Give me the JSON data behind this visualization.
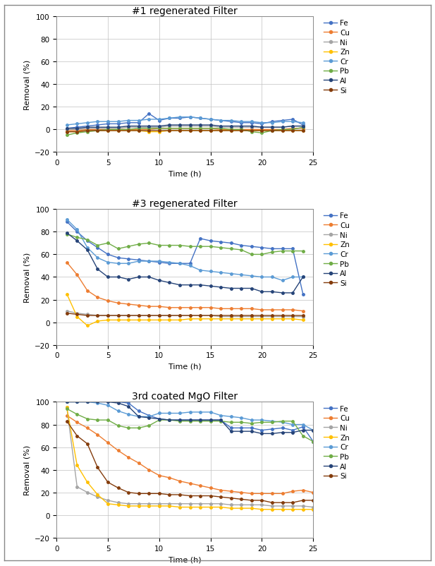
{
  "colors": {
    "Fe": "#4472C4",
    "Cu": "#ED7D31",
    "Ni": "#A5A5A5",
    "Zn": "#FFC000",
    "Cr": "#5B9BD5",
    "Pb": "#70AD47",
    "Al": "#264478",
    "Si": "#843C0C"
  },
  "titles": [
    "#1 regenerated Filter",
    "#3 regenerated Filter",
    "3rd coated MgO Filter"
  ],
  "ylabel": "Removal (%)",
  "xlabel": "Time (h)",
  "ylim": [
    -20,
    100
  ],
  "xlim": [
    0,
    25
  ],
  "yticks": [
    -20,
    0,
    20,
    40,
    60,
    80,
    100
  ],
  "xticks": [
    0,
    5,
    10,
    15,
    20,
    25
  ],
  "plot1": {
    "time": [
      1,
      2,
      3,
      4,
      5,
      6,
      7,
      8,
      9,
      10,
      11,
      12,
      13,
      14,
      15,
      16,
      17,
      18,
      19,
      20,
      21,
      22,
      23,
      24
    ],
    "Fe": [
      1,
      2,
      3,
      4,
      5,
      5,
      6,
      6,
      14,
      8,
      10,
      10,
      11,
      10,
      9,
      8,
      7,
      6,
      6,
      5,
      7,
      8,
      9,
      4
    ],
    "Cu": [
      -1,
      -1,
      0,
      0,
      0,
      0,
      0,
      0,
      0,
      1,
      1,
      1,
      1,
      1,
      1,
      0,
      0,
      0,
      0,
      0,
      0,
      0,
      1,
      1
    ],
    "Ni": [
      0,
      0,
      1,
      1,
      1,
      1,
      2,
      2,
      2,
      2,
      3,
      3,
      3,
      3,
      3,
      2,
      2,
      2,
      2,
      2,
      2,
      2,
      3,
      3
    ],
    "Zn": [
      -2,
      -2,
      -1,
      -1,
      -1,
      -1,
      -1,
      -1,
      -2,
      -2,
      -1,
      -1,
      -1,
      -1,
      -1,
      -1,
      -1,
      -1,
      -1,
      -1,
      -1,
      -1,
      -1,
      -1
    ],
    "Cr": [
      4,
      5,
      6,
      7,
      7,
      7,
      8,
      8,
      9,
      9,
      10,
      11,
      11,
      10,
      9,
      8,
      8,
      7,
      7,
      6,
      6,
      7,
      7,
      6
    ],
    "Pb": [
      -5,
      -3,
      -2,
      -1,
      0,
      0,
      0,
      1,
      1,
      1,
      1,
      1,
      1,
      1,
      1,
      1,
      0,
      0,
      -2,
      -3,
      -1,
      0,
      0,
      2
    ],
    "Al": [
      1,
      1,
      2,
      2,
      2,
      2,
      3,
      3,
      3,
      3,
      4,
      4,
      4,
      4,
      4,
      3,
      3,
      3,
      3,
      2,
      2,
      2,
      3,
      3
    ],
    "Si": [
      -2,
      -2,
      -1,
      -1,
      -1,
      -1,
      -1,
      -1,
      -1,
      -1,
      -1,
      -1,
      -1,
      -1,
      -1,
      -1,
      -1,
      -1,
      -1,
      -1,
      -1,
      -1,
      -1,
      -1
    ]
  },
  "plot2": {
    "time": [
      1,
      2,
      3,
      4,
      5,
      6,
      7,
      8,
      9,
      10,
      11,
      12,
      13,
      14,
      15,
      16,
      17,
      18,
      19,
      20,
      21,
      22,
      23,
      24
    ],
    "Fe": [
      89,
      80,
      72,
      66,
      60,
      57,
      56,
      55,
      54,
      53,
      52,
      52,
      52,
      74,
      72,
      71,
      70,
      68,
      67,
      66,
      65,
      65,
      65,
      25
    ],
    "Cu": [
      53,
      42,
      28,
      22,
      19,
      17,
      16,
      15,
      14,
      14,
      13,
      13,
      13,
      13,
      13,
      12,
      12,
      12,
      12,
      11,
      11,
      11,
      11,
      10
    ],
    "Ni": [
      10,
      8,
      7,
      6,
      6,
      6,
      6,
      6,
      6,
      6,
      6,
      6,
      6,
      6,
      6,
      5,
      5,
      5,
      5,
      5,
      5,
      5,
      5,
      5
    ],
    "Zn": [
      25,
      5,
      -3,
      1,
      2,
      2,
      2,
      2,
      2,
      2,
      2,
      2,
      3,
      3,
      3,
      3,
      3,
      3,
      3,
      3,
      3,
      3,
      3,
      2
    ],
    "Cr": [
      91,
      82,
      66,
      57,
      53,
      52,
      52,
      54,
      54,
      54,
      53,
      52,
      50,
      46,
      45,
      44,
      43,
      42,
      41,
      40,
      40,
      37,
      40,
      40
    ],
    "Pb": [
      78,
      75,
      73,
      68,
      70,
      65,
      67,
      69,
      70,
      68,
      68,
      68,
      67,
      67,
      67,
      66,
      65,
      64,
      60,
      60,
      62,
      63,
      63,
      63
    ],
    "Al": [
      79,
      72,
      64,
      47,
      40,
      40,
      38,
      40,
      40,
      37,
      35,
      33,
      33,
      33,
      32,
      31,
      30,
      30,
      30,
      27,
      27,
      26,
      26,
      40
    ],
    "Si": [
      8,
      7,
      6,
      6,
      6,
      6,
      6,
      6,
      6,
      6,
      6,
      6,
      6,
      6,
      6,
      6,
      6,
      6,
      6,
      6,
      6,
      6,
      6,
      6
    ]
  },
  "plot3": {
    "time": [
      1,
      2,
      3,
      4,
      5,
      6,
      7,
      8,
      9,
      10,
      11,
      12,
      13,
      14,
      15,
      16,
      17,
      18,
      19,
      20,
      21,
      22,
      23,
      24,
      25
    ],
    "Fe": [
      100,
      100,
      100,
      100,
      100,
      100,
      99,
      92,
      88,
      85,
      84,
      84,
      84,
      84,
      84,
      84,
      77,
      77,
      77,
      75,
      76,
      77,
      75,
      78,
      65
    ],
    "Cu": [
      88,
      82,
      77,
      71,
      64,
      57,
      51,
      46,
      40,
      35,
      33,
      30,
      28,
      26,
      24,
      22,
      21,
      20,
      19,
      19,
      19,
      19,
      21,
      22,
      20
    ],
    "Ni": [
      95,
      25,
      20,
      16,
      13,
      11,
      10,
      10,
      10,
      10,
      10,
      10,
      10,
      10,
      10,
      10,
      9,
      9,
      9,
      9,
      8,
      8,
      8,
      8,
      7
    ],
    "Zn": [
      95,
      44,
      29,
      18,
      10,
      9,
      8,
      8,
      8,
      8,
      8,
      7,
      7,
      7,
      7,
      7,
      6,
      6,
      6,
      5,
      5,
      5,
      5,
      5,
      5
    ],
    "Cr": [
      100,
      100,
      100,
      99,
      97,
      92,
      89,
      87,
      87,
      90,
      90,
      90,
      91,
      91,
      91,
      88,
      87,
      86,
      84,
      84,
      83,
      82,
      80,
      80,
      75
    ],
    "Pb": [
      94,
      89,
      85,
      84,
      84,
      79,
      77,
      77,
      79,
      84,
      84,
      83,
      83,
      83,
      83,
      83,
      82,
      82,
      81,
      82,
      82,
      83,
      83,
      70,
      65
    ],
    "Al": [
      100,
      100,
      100,
      100,
      100,
      99,
      96,
      87,
      86,
      85,
      84,
      84,
      84,
      84,
      84,
      84,
      74,
      74,
      74,
      72,
      72,
      73,
      73,
      75,
      75
    ],
    "Si": [
      83,
      70,
      63,
      42,
      29,
      24,
      20,
      19,
      19,
      19,
      18,
      18,
      17,
      17,
      17,
      16,
      15,
      14,
      13,
      13,
      11,
      11,
      11,
      13,
      13
    ]
  }
}
